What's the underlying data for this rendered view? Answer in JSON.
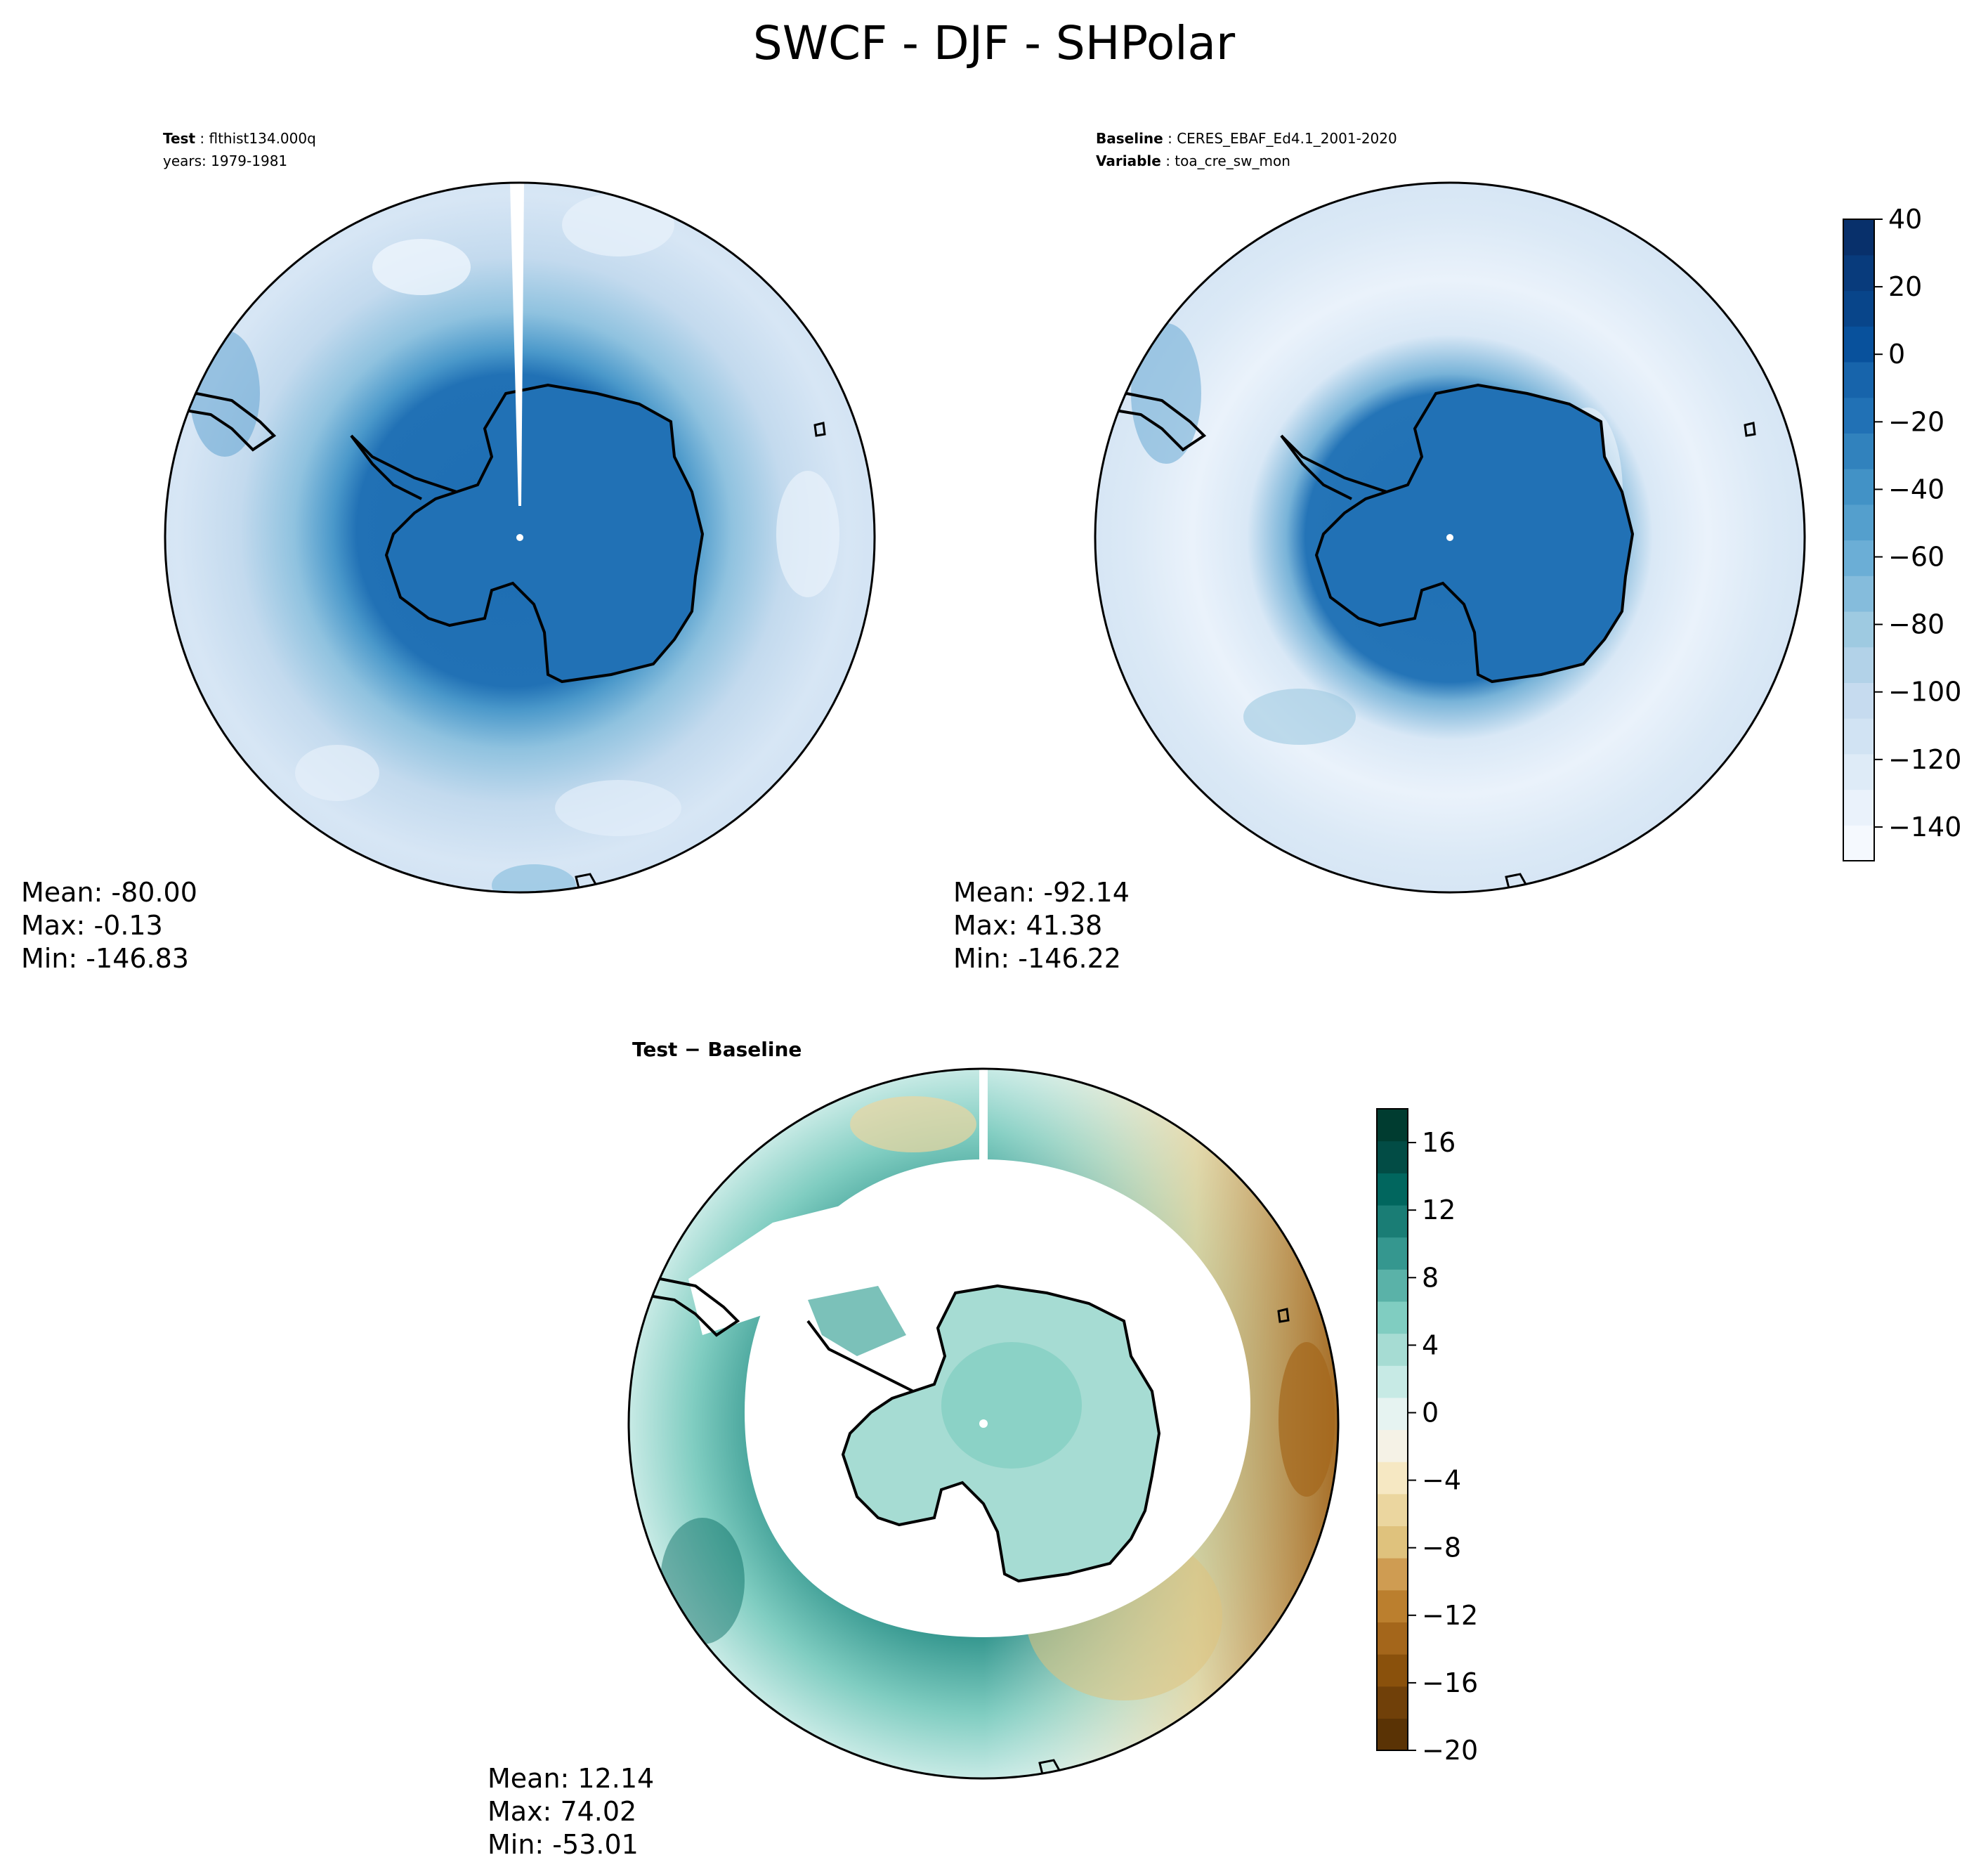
{
  "figure": {
    "title": "SWCF - DJF - SHPolar"
  },
  "panels": {
    "test": {
      "label_bold": "Test",
      "label_value": "flthist134.000q",
      "years_line": "years: 1979-1981",
      "stats": {
        "mean": "Mean: -80.00",
        "max": "Max: -0.13",
        "min": "Min: -146.83"
      }
    },
    "baseline": {
      "label_bold": "Baseline",
      "label_value": "CERES_EBAF_Ed4.1_2001-2020",
      "variable_bold": "Variable",
      "variable_value": "toa_cre_sw_mon",
      "stats": {
        "mean": "Mean: -92.14",
        "max": "Max: 41.38",
        "min": "Min: -146.22"
      }
    },
    "diff": {
      "label": "Test − Baseline",
      "stats": {
        "mean": "Mean: 12.14",
        "max": "Max: 74.02",
        "min": "Min: -53.01"
      }
    }
  },
  "colorbars": {
    "main": {
      "colormap": "Blues",
      "vmin": -150,
      "vmax": 40,
      "ticks": [
        40,
        20,
        0,
        -20,
        -40,
        -60,
        -80,
        -100,
        -120,
        -140
      ],
      "tick_labels": [
        "40",
        "20",
        "0",
        "−20",
        "−40",
        "−60",
        "−80",
        "−100",
        "−120",
        "−140"
      ],
      "colors": [
        "#f5f9fe",
        "#eaf2fb",
        "#deebf7",
        "#d1e3f3",
        "#c6dbef",
        "#b2d2e8",
        "#9ecae1",
        "#85bcdc",
        "#6baed6",
        "#549fcd",
        "#4292c6",
        "#3182bd",
        "#2171b5",
        "#1764ab",
        "#08519c",
        "#08458a",
        "#083b7c",
        "#08306b"
      ]
    },
    "diff": {
      "colormap": "BrBG",
      "vmin": -20,
      "vmax": 18,
      "ticks": [
        16,
        12,
        8,
        4,
        0,
        -4,
        -8,
        -12,
        -16,
        -20
      ],
      "tick_labels": [
        "16",
        "12",
        "8",
        "4",
        "0",
        "−4",
        "−8",
        "−12",
        "−16",
        "−20"
      ],
      "colors": [
        "#5a3305",
        "#704009",
        "#8a510c",
        "#a4661b",
        "#bb7f2e",
        "#cf9c52",
        "#dfc27d",
        "#ebd69f",
        "#f6e8c3",
        "#f5f2e6",
        "#e6f3f1",
        "#c7eae5",
        "#a6dcd3",
        "#80cdc1",
        "#5ab2a8",
        "#35978f",
        "#1a7d75",
        "#01665e",
        "#024c45",
        "#003c30"
      ]
    }
  },
  "chart_data": [
    {
      "type": "heatmap",
      "projection": "south-polar-stereographic",
      "title": "Test: flthist134.000q",
      "field_summary": {
        "mean": -80.0,
        "max": -0.13,
        "min": -146.83
      },
      "value_range": [
        -150,
        40
      ]
    },
    {
      "type": "heatmap",
      "projection": "south-polar-stereographic",
      "title": "Baseline: CERES_EBAF_Ed4.1_2001-2020",
      "field_summary": {
        "mean": -92.14,
        "max": 41.38,
        "min": -146.22
      },
      "value_range": [
        -150,
        40
      ]
    },
    {
      "type": "heatmap",
      "projection": "south-polar-stereographic",
      "title": "Test − Baseline",
      "field_summary": {
        "mean": 12.14,
        "max": 74.02,
        "min": -53.01
      },
      "value_range": [
        -20,
        18
      ]
    }
  ]
}
